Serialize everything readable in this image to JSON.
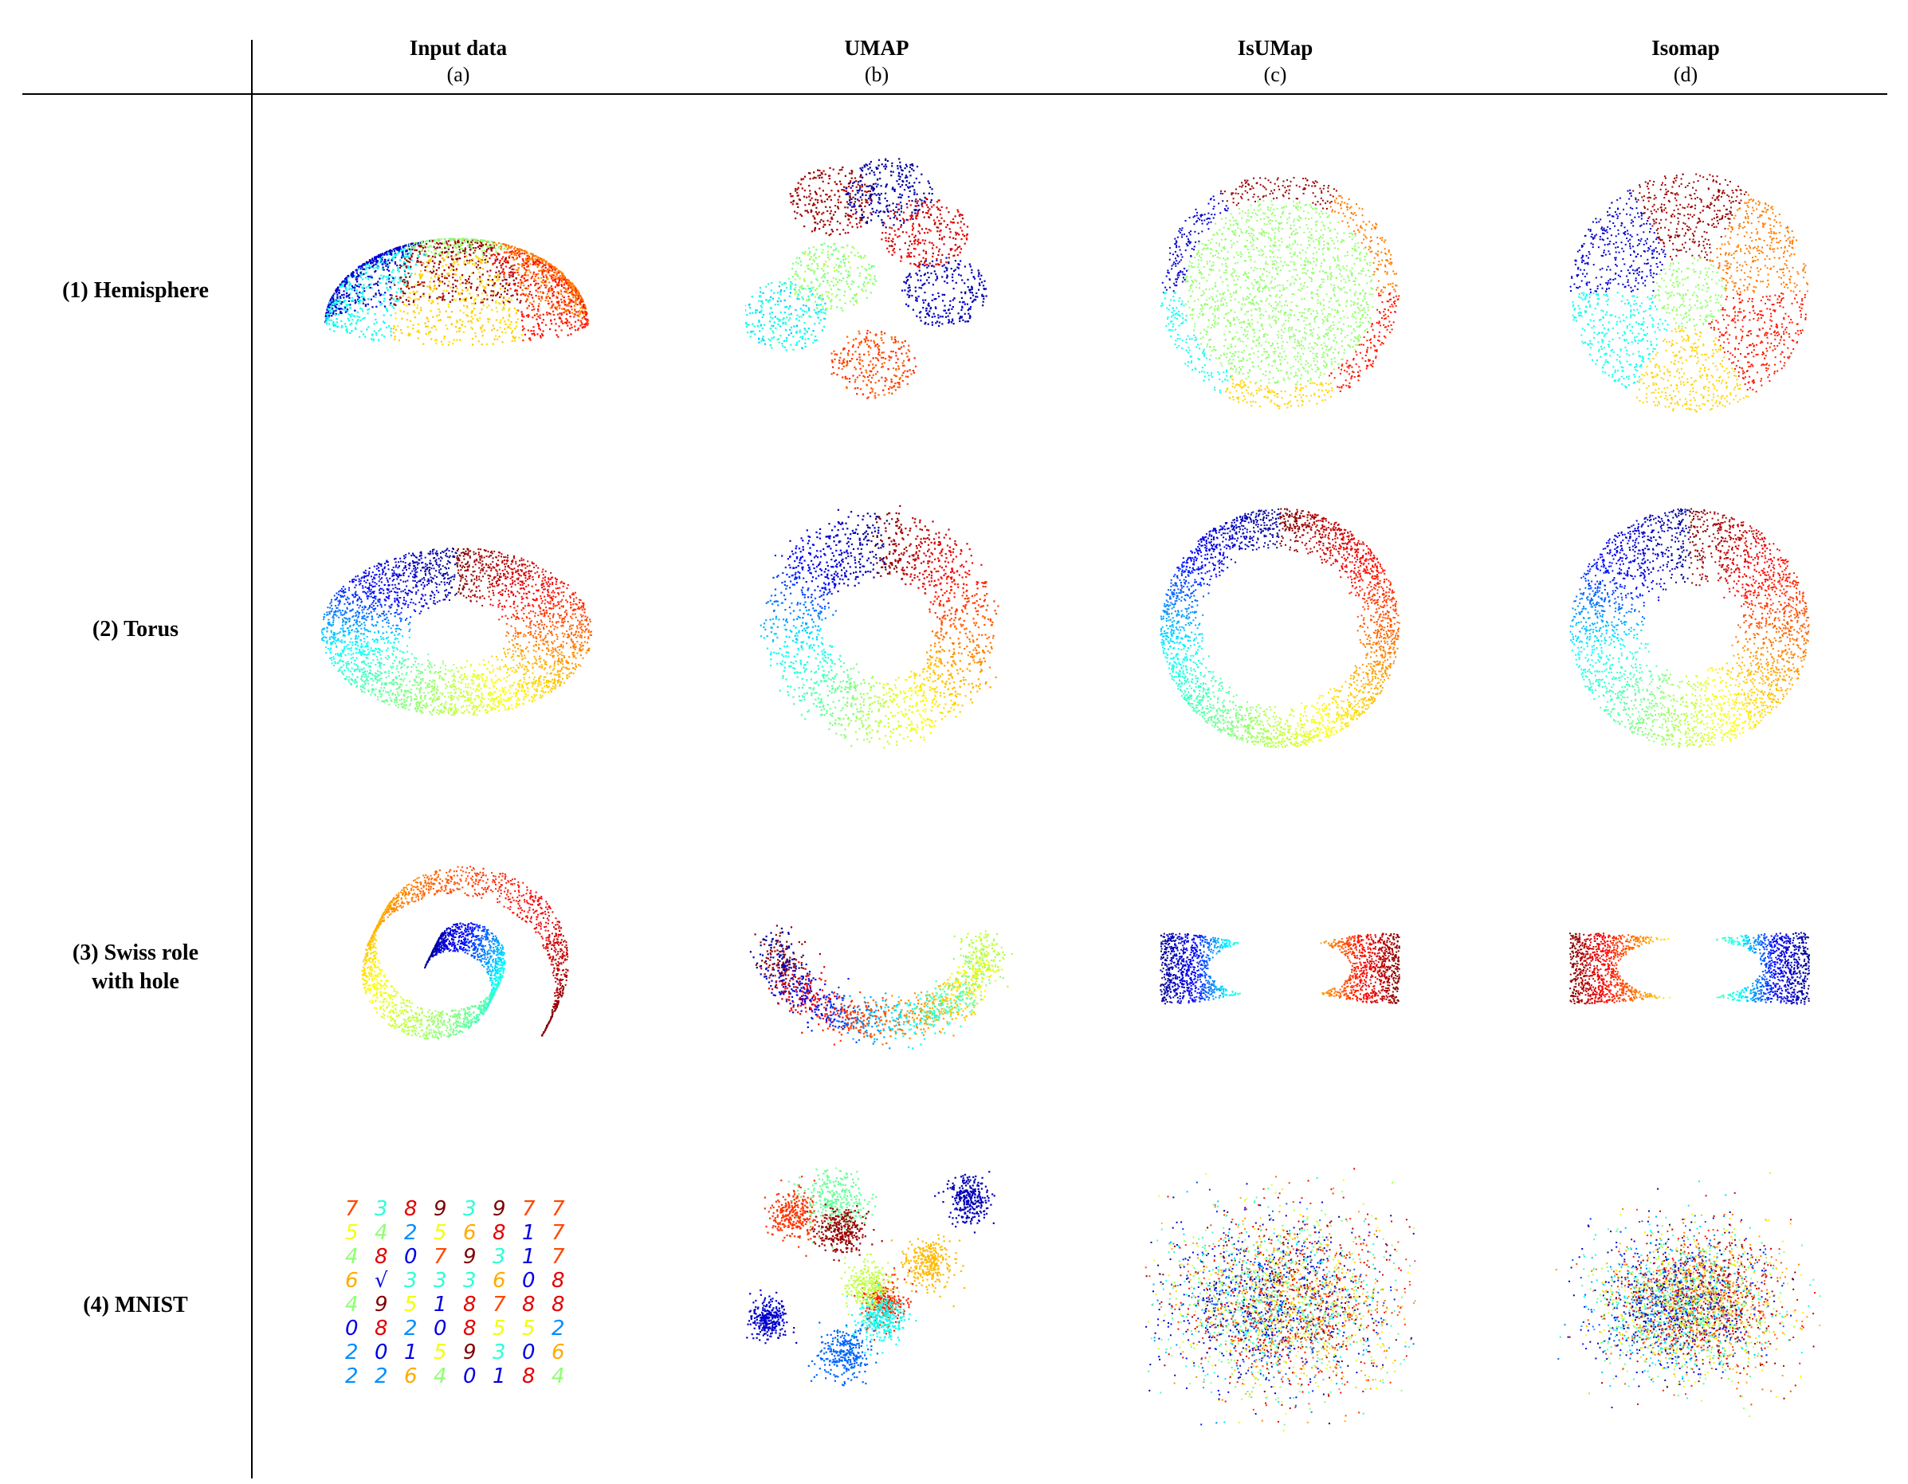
{
  "figure": {
    "columns": [
      {
        "name": "Input data",
        "letter": "(a)"
      },
      {
        "name": "UMAP",
        "letter": "(b)"
      },
      {
        "name": "IsUMap",
        "letter": "(c)"
      },
      {
        "name": "Isomap",
        "letter": "(d)"
      }
    ],
    "rows": [
      {
        "label": "(1) Hemisphere"
      },
      {
        "label": "(2) Torus"
      },
      {
        "label_line1": "(3) Swiss role",
        "label_line2": "with hole"
      },
      {
        "label": "(4) MNIST"
      }
    ],
    "mnist_digits": [
      [
        "7",
        "3",
        "8",
        "9",
        "3",
        "9",
        "7",
        "7"
      ],
      [
        "5",
        "4",
        "2",
        "5",
        "6",
        "8",
        "1",
        "7"
      ],
      [
        "4",
        "8",
        "0",
        "7",
        "9",
        "3",
        "1",
        "7"
      ],
      [
        "6",
        "√",
        "3",
        "3",
        "3",
        "6",
        "0",
        "8"
      ],
      [
        "4",
        "9",
        "5",
        "1",
        "8",
        "7",
        "8",
        "8"
      ],
      [
        "0",
        "8",
        "2",
        "0",
        "8",
        "5",
        "5",
        "2"
      ],
      [
        "2",
        "0",
        "1",
        "5",
        "9",
        "3",
        "0",
        "6"
      ],
      [
        "2",
        "2",
        "6",
        "4",
        "0",
        "1",
        "8",
        "4"
      ]
    ],
    "colormap": [
      "#00008f",
      "#0000ff",
      "#00ffff",
      "#80ff80",
      "#ffff00",
      "#ff8000",
      "#ff0000",
      "#800000"
    ]
  }
}
